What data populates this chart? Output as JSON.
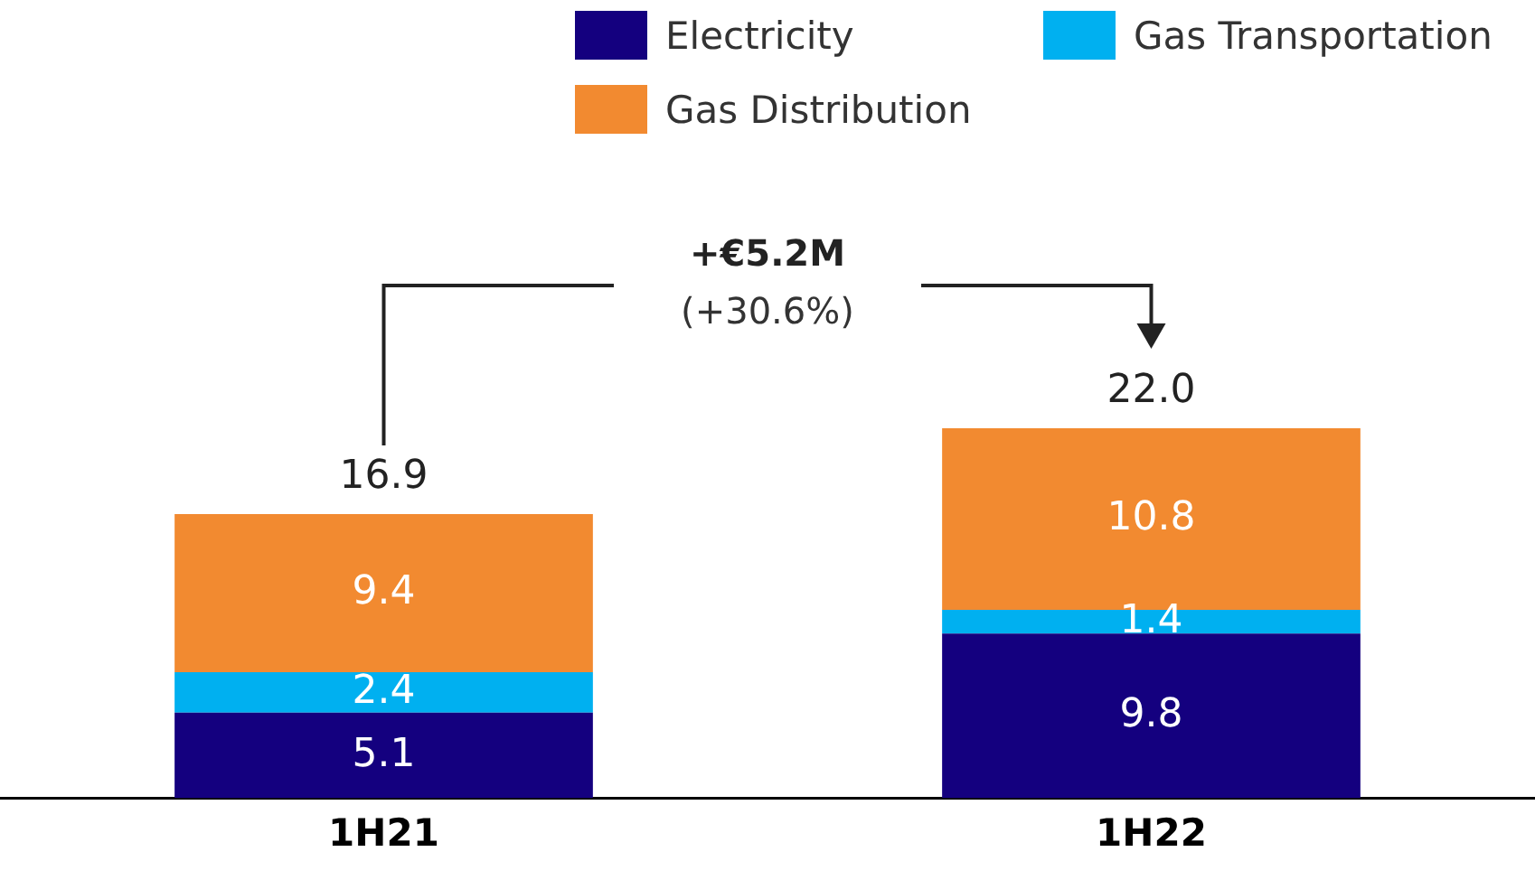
{
  "chart_data": {
    "type": "bar",
    "stacked": true,
    "categories": [
      "1H21",
      "1H22"
    ],
    "series": [
      {
        "name": "Electricity",
        "color": "#14007f",
        "values": [
          5.1,
          9.8
        ]
      },
      {
        "name": "Gas Transportation",
        "color": "#00b0f0",
        "values": [
          2.4,
          1.4
        ]
      },
      {
        "name": "Gas Distribution",
        "color": "#f28a30",
        "values": [
          9.4,
          10.8
        ]
      }
    ],
    "data_labels": true,
    "totals": [
      "16.9",
      "22.0"
    ],
    "legend": "top right",
    "annotations": [
      "+€5.2M",
      "(+30.6%)"
    ]
  }
}
